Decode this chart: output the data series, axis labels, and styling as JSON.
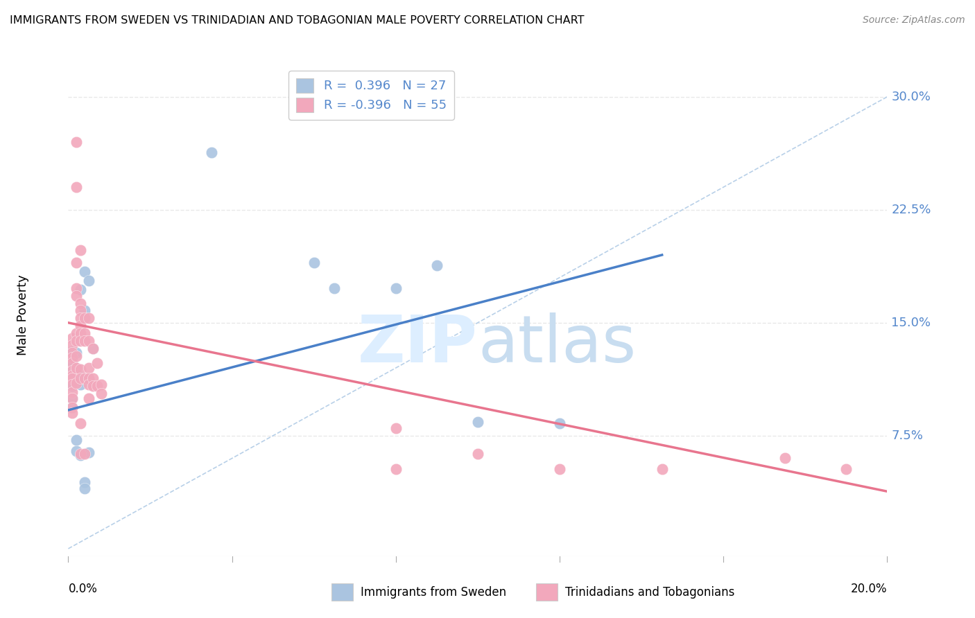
{
  "title": "IMMIGRANTS FROM SWEDEN VS TRINIDADIAN AND TOBAGONIAN MALE POVERTY CORRELATION CHART",
  "source": "Source: ZipAtlas.com",
  "ylabel": "Male Poverty",
  "y_ticks": [
    0.0,
    0.075,
    0.15,
    0.225,
    0.3
  ],
  "y_tick_labels": [
    "",
    "7.5%",
    "15.0%",
    "22.5%",
    "30.0%"
  ],
  "x_range": [
    0.0,
    0.2
  ],
  "y_range": [
    -0.005,
    0.315
  ],
  "legend_label1": "Immigrants from Sweden",
  "legend_label2": "Trinidadians and Tobagonians",
  "blue_color": "#aac4e0",
  "pink_color": "#f2a8bc",
  "blue_line_color": "#4a80c8",
  "pink_line_color": "#e8758e",
  "dashed_line_color": "#b8d0e8",
  "text_color": "#5588cc",
  "watermark_color": "#ddeeff",
  "sweden_points": [
    [
      0.001,
      0.131
    ],
    [
      0.001,
      0.124
    ],
    [
      0.001,
      0.118
    ],
    [
      0.001,
      0.114
    ],
    [
      0.001,
      0.108
    ],
    [
      0.001,
      0.1
    ],
    [
      0.001,
      0.094
    ],
    [
      0.002,
      0.13
    ],
    [
      0.002,
      0.12
    ],
    [
      0.002,
      0.117
    ],
    [
      0.003,
      0.172
    ],
    [
      0.003,
      0.114
    ],
    [
      0.003,
      0.109
    ],
    [
      0.004,
      0.184
    ],
    [
      0.004,
      0.158
    ],
    [
      0.004,
      0.153
    ],
    [
      0.005,
      0.178
    ],
    [
      0.005,
      0.113
    ],
    [
      0.006,
      0.133
    ],
    [
      0.035,
      0.263
    ],
    [
      0.06,
      0.19
    ],
    [
      0.065,
      0.173
    ],
    [
      0.08,
      0.173
    ],
    [
      0.09,
      0.188
    ],
    [
      0.1,
      0.084
    ],
    [
      0.12,
      0.083
    ],
    [
      0.002,
      0.072
    ],
    [
      0.002,
      0.065
    ],
    [
      0.003,
      0.062
    ],
    [
      0.005,
      0.064
    ],
    [
      0.004,
      0.044
    ],
    [
      0.004,
      0.04
    ]
  ],
  "trini_points": [
    [
      0.001,
      0.14
    ],
    [
      0.001,
      0.135
    ],
    [
      0.001,
      0.13
    ],
    [
      0.001,
      0.127
    ],
    [
      0.001,
      0.123
    ],
    [
      0.001,
      0.118
    ],
    [
      0.001,
      0.115
    ],
    [
      0.001,
      0.113
    ],
    [
      0.001,
      0.109
    ],
    [
      0.001,
      0.104
    ],
    [
      0.001,
      0.1
    ],
    [
      0.001,
      0.094
    ],
    [
      0.001,
      0.09
    ],
    [
      0.002,
      0.27
    ],
    [
      0.002,
      0.24
    ],
    [
      0.002,
      0.19
    ],
    [
      0.002,
      0.173
    ],
    [
      0.002,
      0.168
    ],
    [
      0.002,
      0.143
    ],
    [
      0.002,
      0.138
    ],
    [
      0.002,
      0.128
    ],
    [
      0.002,
      0.12
    ],
    [
      0.002,
      0.11
    ],
    [
      0.003,
      0.198
    ],
    [
      0.003,
      0.163
    ],
    [
      0.003,
      0.158
    ],
    [
      0.003,
      0.153
    ],
    [
      0.003,
      0.148
    ],
    [
      0.003,
      0.143
    ],
    [
      0.003,
      0.138
    ],
    [
      0.003,
      0.119
    ],
    [
      0.003,
      0.113
    ],
    [
      0.003,
      0.083
    ],
    [
      0.003,
      0.063
    ],
    [
      0.004,
      0.153
    ],
    [
      0.004,
      0.143
    ],
    [
      0.004,
      0.138
    ],
    [
      0.004,
      0.113
    ],
    [
      0.004,
      0.063
    ],
    [
      0.005,
      0.153
    ],
    [
      0.005,
      0.138
    ],
    [
      0.005,
      0.12
    ],
    [
      0.005,
      0.113
    ],
    [
      0.005,
      0.109
    ],
    [
      0.005,
      0.1
    ],
    [
      0.006,
      0.133
    ],
    [
      0.006,
      0.113
    ],
    [
      0.006,
      0.108
    ],
    [
      0.007,
      0.123
    ],
    [
      0.007,
      0.108
    ],
    [
      0.008,
      0.109
    ],
    [
      0.008,
      0.103
    ],
    [
      0.08,
      0.08
    ],
    [
      0.08,
      0.053
    ],
    [
      0.1,
      0.063
    ],
    [
      0.12,
      0.053
    ],
    [
      0.145,
      0.053
    ],
    [
      0.175,
      0.06
    ],
    [
      0.19,
      0.053
    ]
  ],
  "sweden_trend_x": [
    0.0,
    0.145
  ],
  "sweden_trend_y": [
    0.092,
    0.195
  ],
  "trini_trend_x": [
    0.0,
    0.2
  ],
  "trini_trend_y": [
    0.15,
    0.038
  ],
  "dashed_trend_x": [
    0.0,
    0.2
  ],
  "dashed_trend_y": [
    0.0,
    0.3
  ],
  "background_color": "#ffffff",
  "grid_color": "#e8e8e8"
}
